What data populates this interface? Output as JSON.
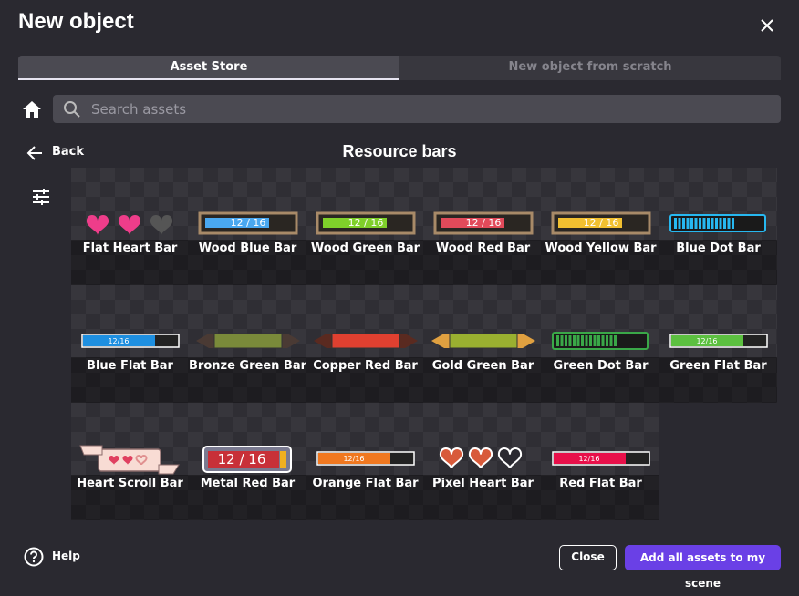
{
  "header": {
    "title": "New object"
  },
  "tabs": [
    "Asset Store",
    "New object from scratch"
  ],
  "search": {
    "placeholder": "Search assets"
  },
  "nav": {
    "back": "Back",
    "section_title": "Resource bars"
  },
  "assets": [
    {
      "name": "Flat Heart Bar"
    },
    {
      "name": "Wood Blue Bar",
      "preview_text": "12 / 16"
    },
    {
      "name": "Wood Green Bar",
      "preview_text": "12 / 16"
    },
    {
      "name": "Wood Red Bar",
      "preview_text": "12 / 16"
    },
    {
      "name": "Wood Yellow Bar",
      "preview_text": "12 / 16"
    },
    {
      "name": "Blue Dot Bar"
    },
    {
      "name": "Blue Flat Bar",
      "preview_text": "12/16"
    },
    {
      "name": "Bronze Green Bar"
    },
    {
      "name": "Copper Red Bar"
    },
    {
      "name": "Gold Green Bar"
    },
    {
      "name": "Green Dot Bar"
    },
    {
      "name": "Green Flat Bar",
      "preview_text": "12/16"
    },
    {
      "name": "Heart Scroll Bar"
    },
    {
      "name": "Metal Red Bar",
      "preview_text": "12 / 16"
    },
    {
      "name": "Orange Flat Bar",
      "preview_text": "12/16"
    },
    {
      "name": "Pixel Heart Bar"
    },
    {
      "name": "Red Flat Bar",
      "preview_text": "12/16"
    }
  ],
  "footer": {
    "help": "Help",
    "close": "Close",
    "add_all": "Add all assets to my scene"
  }
}
